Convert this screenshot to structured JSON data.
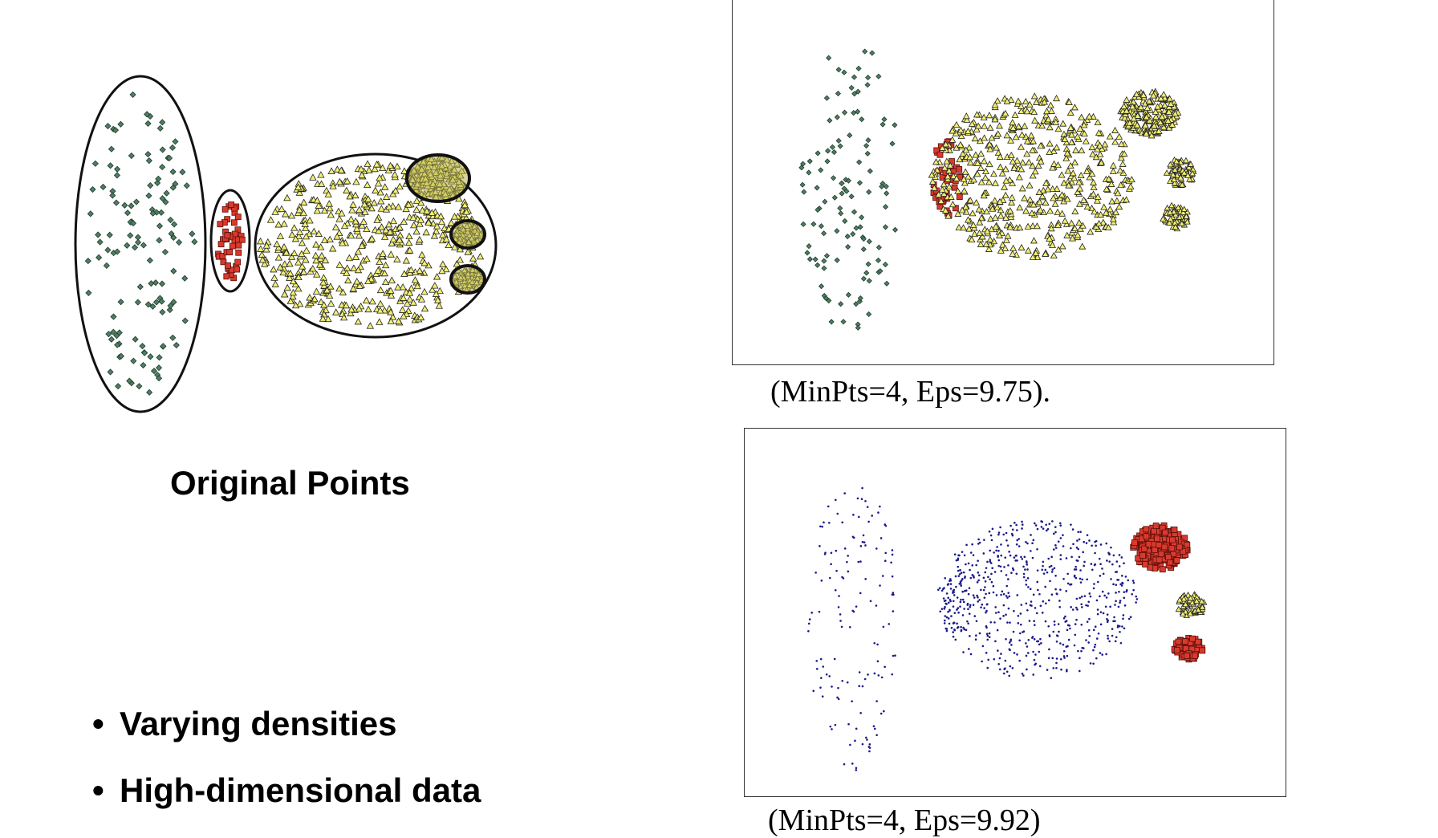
{
  "original": {
    "caption": "Original Points"
  },
  "plot_a": {
    "caption": "(MinPts=4, Eps=9.75)."
  },
  "plot_b": {
    "caption": "(MinPts=4, Eps=9.92)"
  },
  "bullets": [
    {
      "marker": "•",
      "text": "Varying densities"
    },
    {
      "marker": "•",
      "text": "High-dimensional data"
    }
  ],
  "colors": {
    "green_points": "#4f7f63",
    "red_points": "#d93a2e",
    "yellow_points": "#f2ef73",
    "blue_points": "#1a1a8c",
    "dense_fill": "#b8b252",
    "outline": "#111111"
  },
  "icons": [
    "diamond-marker",
    "square-marker",
    "triangle-marker",
    "dot-marker"
  ]
}
